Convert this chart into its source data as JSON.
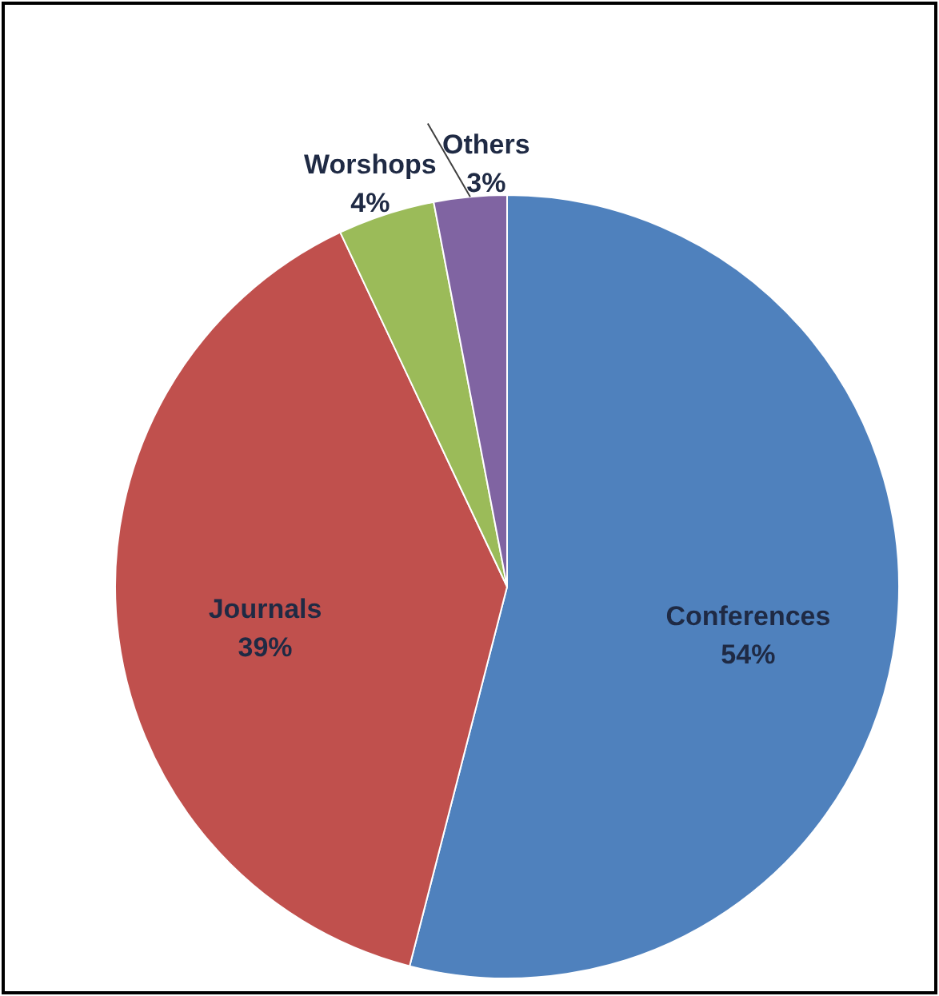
{
  "chart_data": {
    "type": "pie",
    "categories": [
      "Conferences",
      "Journals",
      "Worshops",
      "Others"
    ],
    "values": [
      54,
      39,
      4,
      3
    ],
    "colors": [
      "#4f81bd",
      "#c0504d",
      "#9bbb59",
      "#8064a2"
    ],
    "value_labels": [
      "54%",
      "39%",
      "4%",
      "3%"
    ]
  }
}
